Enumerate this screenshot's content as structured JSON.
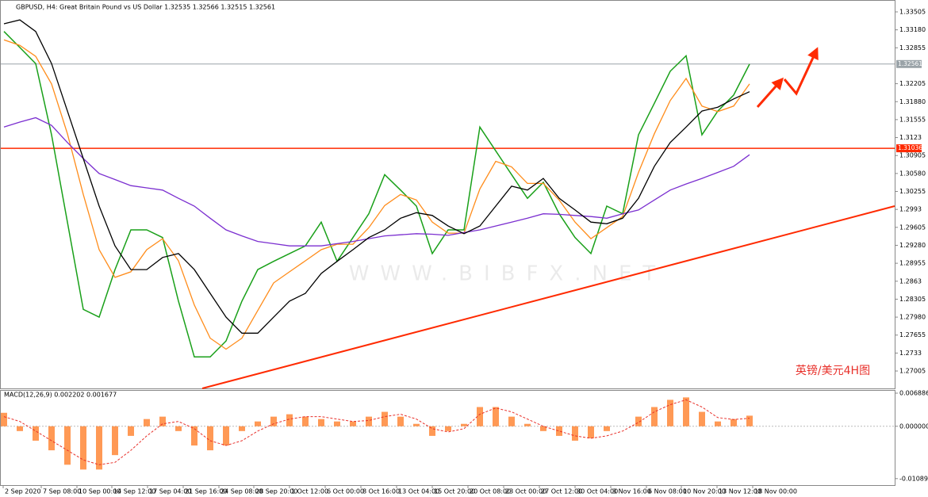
{
  "chart_data": [
    {
      "type": "line",
      "title": "GBPUSD, H4:  Great Britain Pound vs US Dollar  1.32535 1.32566 1.32515 1.32561",
      "annotation": "英镑/美元4H图",
      "watermark": "WWW.BIBFX.NET",
      "x": [
        0,
        1,
        2,
        3,
        4,
        5,
        6,
        7,
        8,
        9,
        10,
        11,
        12,
        13,
        14,
        15,
        16,
        17,
        18,
        19,
        20,
        21,
        22,
        23,
        24,
        25,
        26,
        27,
        28,
        29,
        30,
        31,
        32,
        33,
        34,
        35,
        36,
        37,
        38,
        39,
        40,
        41,
        42,
        43,
        44,
        45,
        46,
        47
      ],
      "xlim": [
        -0.2,
        56.15
      ],
      "xticks": [
        {
          "value": -0.05,
          "label": "2 Sep 2020"
        },
        {
          "value": 2.35,
          "label": "7 Sep 08:00"
        },
        {
          "value": 4.6,
          "label": "10 Sep 00:00"
        },
        {
          "value": 6.8,
          "label": "14 Sep 12:00"
        },
        {
          "value": 9.05,
          "label": "17 Sep 04:00"
        },
        {
          "value": 11.3,
          "label": "21 Sep 16:00"
        },
        {
          "value": 13.55,
          "label": "24 Sep 08:00"
        },
        {
          "value": 15.75,
          "label": "28 Sep 20:00"
        },
        {
          "value": 18,
          "label": "1 Oct 12:00"
        },
        {
          "value": 20.25,
          "label": "6 Oct 00:00"
        },
        {
          "value": 22.5,
          "label": "8 Oct 16:00"
        },
        {
          "value": 24.75,
          "label": "13 Oct 04:00"
        },
        {
          "value": 27,
          "label": "15 Oct 20:00"
        },
        {
          "value": 29.25,
          "label": "20 Oct 08:00"
        },
        {
          "value": 31.5,
          "label": "23 Oct 00:00"
        },
        {
          "value": 33.75,
          "label": "27 Oct 12:00"
        },
        {
          "value": 36,
          "label": "30 Oct 04:00"
        },
        {
          "value": 38.25,
          "label": "3 Nov 16:00"
        },
        {
          "value": 40.5,
          "label": "6 Nov 08:00"
        },
        {
          "value": 42.7,
          "label": "10 Nov 20:00"
        },
        {
          "value": 44.95,
          "label": "13 Nov 12:00"
        },
        {
          "value": 47.2,
          "label": "18 Nov 00:00"
        }
      ],
      "ylim": [
        1.2669,
        1.3372
      ],
      "yticks": [
        1.33505,
        {
          "value": 1.3318,
          "label": "1.33180"
        },
        1.32855,
        1.32205,
        {
          "value": 1.3188,
          "label": "1.31880"
        },
        1.31555,
        1.3123,
        1.30905,
        {
          "value": 1.3058,
          "label": "1.30580"
        },
        1.30255,
        1.2993,
        1.29605,
        {
          "value": 1.2928,
          "label": "1.29280"
        },
        1.28955,
        1.2863,
        1.28305,
        {
          "value": 1.2798,
          "label": "1.27980"
        },
        1.27655,
        1.2733,
        1.27005
      ],
      "series": [
        {
          "color": "#19a019",
          "values": [
            1.3315,
            1.3286,
            1.3257,
            1.3128,
            1.297,
            1.2812,
            1.2798,
            1.2884,
            1.2956,
            1.2956,
            1.2942,
            1.2827,
            1.2726,
            1.2726,
            1.2755,
            1.2827,
            1.2884,
            1.2899,
            1.2913,
            1.2927,
            1.297,
            1.2899,
            1.2942,
            1.2985,
            1.3056,
            1.3028,
            1.2999,
            1.2913,
            1.2956,
            1.2956,
            1.3142,
            1.3099,
            1.3056,
            1.3013,
            1.3042,
            1.2985,
            1.2942,
            1.2913,
            1.2999,
            1.2985,
            1.3128,
            1.3185,
            1.3243,
            1.3271,
            1.3128,
            1.3171,
            1.32,
            1.3256
          ]
        },
        {
          "color": "#ff8c1a",
          "values": [
            1.33,
            1.329,
            1.327,
            1.322,
            1.313,
            1.302,
            1.292,
            1.287,
            1.288,
            1.292,
            1.294,
            1.29,
            1.282,
            1.276,
            1.274,
            1.276,
            1.281,
            1.286,
            1.288,
            1.29,
            1.292,
            1.293,
            1.293,
            1.296,
            1.3,
            1.302,
            1.301,
            1.297,
            1.295,
            1.295,
            1.303,
            1.308,
            1.307,
            1.304,
            1.304,
            1.301,
            1.297,
            1.294,
            1.296,
            1.298,
            1.306,
            1.313,
            1.319,
            1.323,
            1.318,
            1.317,
            1.318,
            1.322
          ]
        },
        {
          "color": "#7b2fd0",
          "values": [
            1.3142,
            1.3151,
            1.3159,
            1.3145,
            1.3114,
            1.3085,
            1.3058,
            1.3047,
            1.3036,
            1.3032,
            1.3028,
            1.3013,
            1.2999,
            1.2977,
            1.2956,
            1.2945,
            1.2935,
            1.2931,
            1.2927,
            1.2927,
            1.2927,
            1.2931,
            1.2935,
            1.294,
            1.2945,
            1.2947,
            1.2949,
            1.2948,
            1.2946,
            1.2951,
            1.2956,
            1.2963,
            1.297,
            1.2977,
            1.2985,
            1.2984,
            1.2982,
            1.298,
            1.2977,
            1.2985,
            1.2992,
            1.301,
            1.3028,
            1.3039,
            1.3049,
            1.306,
            1.3071,
            1.3092
          ]
        },
        {
          "color": "#000000",
          "values": [
            1.3329,
            1.3336,
            1.3315,
            1.3257,
            1.3171,
            1.3085,
            1.2999,
            1.2927,
            1.2884,
            1.2884,
            1.2906,
            1.2913,
            1.2884,
            1.2841,
            1.2798,
            1.2769,
            1.2769,
            1.2798,
            1.2827,
            1.2841,
            1.2877,
            1.2899,
            1.292,
            1.2942,
            1.2956,
            1.2977,
            1.2987,
            1.2982,
            1.2963,
            1.2949,
            1.2963,
            1.2999,
            1.3035,
            1.3028,
            1.3049,
            1.3013,
            1.2992,
            1.297,
            1.2967,
            1.2977,
            1.3013,
            1.3071,
            1.3114,
            1.3142,
            1.3171,
            1.3178,
            1.3193,
            1.3206
          ]
        }
      ],
      "hlines": [
        {
          "value": 1.32561,
          "color": "#9aa3a8"
        },
        {
          "value": 1.31036,
          "color": "#ff2a00"
        }
      ],
      "trendline": {
        "x": [
          12.5,
          56.15
        ],
        "y": [
          1.2669,
          1.2999
        ],
        "color": "#ff2a00"
      }
    },
    {
      "type": "bar",
      "title": "MACD(12,26,9) 0.002202 0.001677",
      "ylim": [
        -0.01224,
        0.00738
      ],
      "yticks": [
        0.006886,
        {
          "value": 0,
          "label": "0.000000"
        },
        -0.010891
      ],
      "color": "#ff7f2a",
      "values": [
        0.0028,
        -0.001,
        -0.003,
        -0.005,
        -0.008,
        -0.009,
        -0.009,
        -0.006,
        -0.002,
        0.0015,
        0.002,
        -0.001,
        -0.004,
        -0.005,
        -0.004,
        -0.001,
        0.001,
        0.002,
        0.0025,
        0.002,
        0.0015,
        0.001,
        0.001,
        0.002,
        0.003,
        0.002,
        0.0005,
        -0.002,
        -0.001,
        0.0005,
        0.004,
        0.004,
        0.002,
        0.0005,
        -0.001,
        -0.002,
        -0.003,
        -0.0025,
        -0.001,
        0,
        0.002,
        0.004,
        0.0055,
        0.006,
        0.003,
        0.001,
        0.0015,
        0.002202
      ],
      "signal": [
        0.002,
        0.001,
        -0.001,
        -0.003,
        -0.005,
        -0.007,
        -0.008,
        -0.0075,
        -0.005,
        -0.002,
        0.0005,
        0.001,
        -0.0005,
        -0.003,
        -0.004,
        -0.003,
        -0.001,
        0.0005,
        0.0015,
        0.002,
        0.002,
        0.0015,
        0.001,
        0.0012,
        0.002,
        0.0025,
        0.0015,
        -0.0005,
        -0.0012,
        -0.0005,
        0.0025,
        0.0038,
        0.003,
        0.0015,
        0,
        -0.001,
        -0.002,
        -0.0025,
        -0.002,
        -0.001,
        0.0008,
        0.003,
        0.0045,
        0.0055,
        0.004,
        0.0018,
        0.0014,
        0.001677
      ],
      "signal_color": "#e8302a"
    }
  ]
}
